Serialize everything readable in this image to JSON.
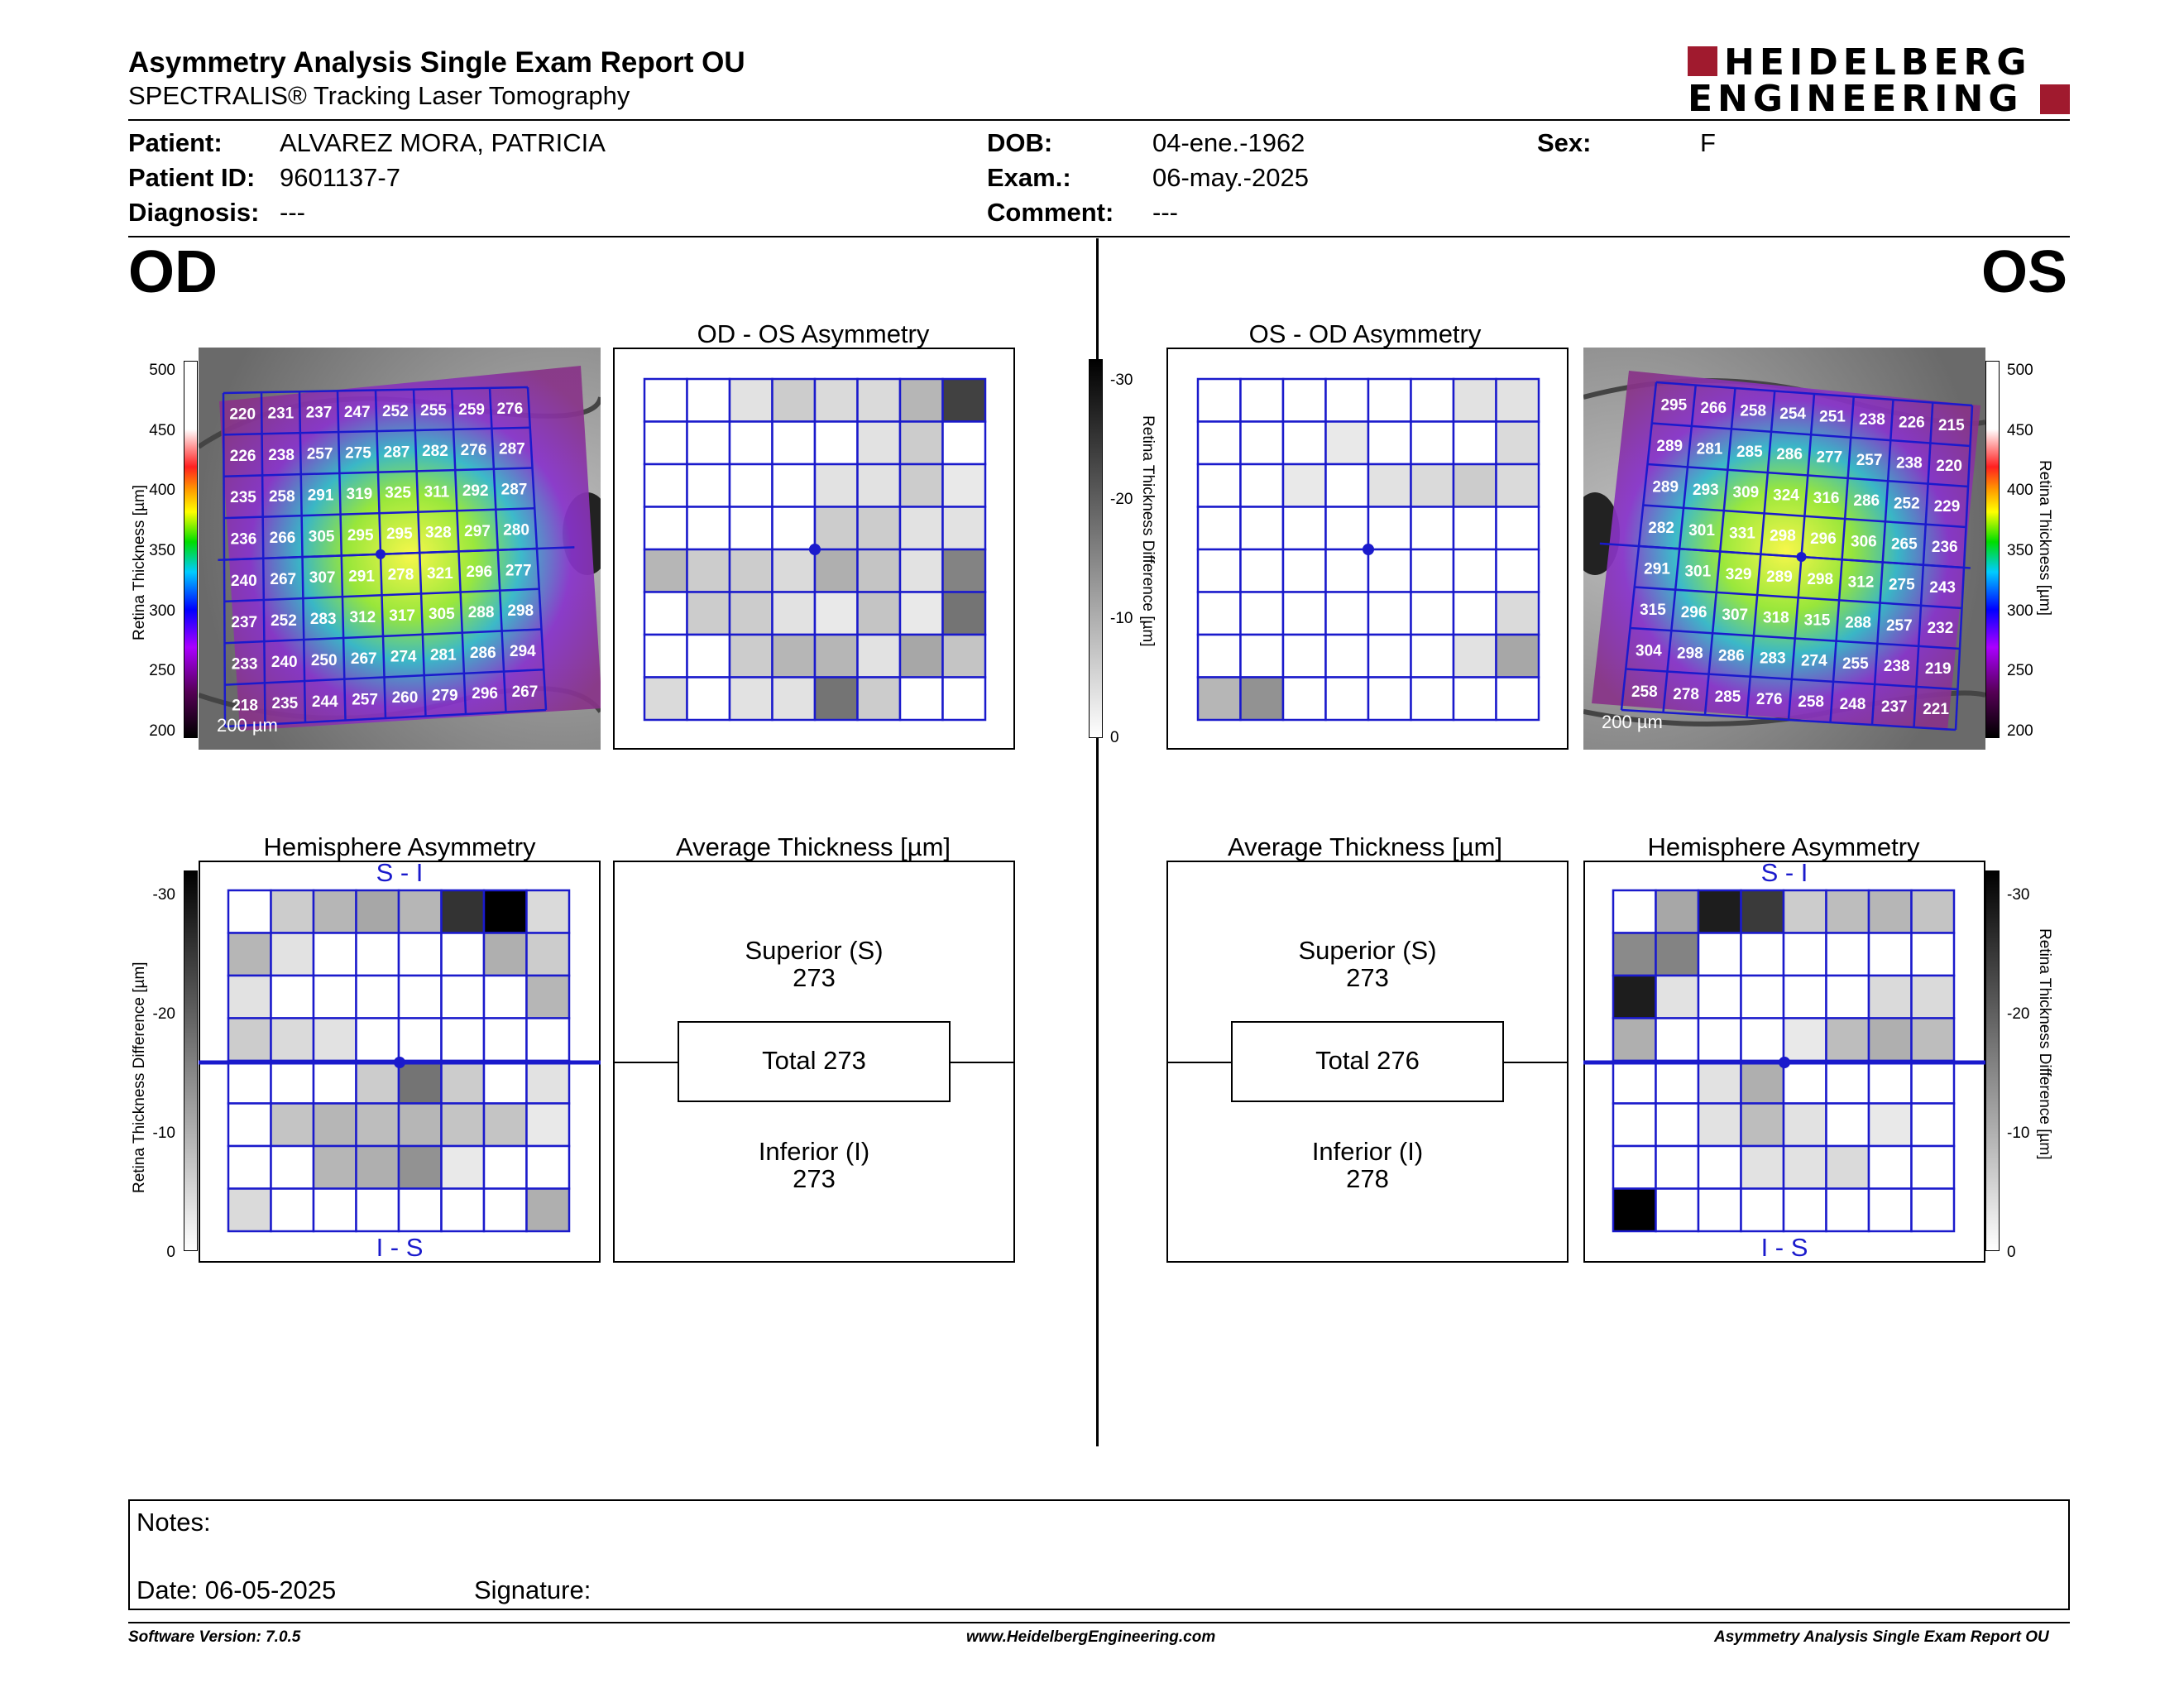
{
  "header": {
    "title": "Asymmetry Analysis Single Exam Report OU",
    "subtitle": "SPECTRALIS® Tracking Laser Tomography",
    "logo_line1": "HEIDELBERG",
    "logo_line2": "ENGINEERING",
    "logo_color": "#a01a2e"
  },
  "patient": {
    "patient_label": "Patient:",
    "patient_value": "ALVAREZ MORA, PATRICIA",
    "id_label": "Patient ID:",
    "id_value": "9601137-7",
    "diag_label": "Diagnosis:",
    "diag_value": "---",
    "dob_label": "DOB:",
    "dob_value": "04-ene.-1962",
    "exam_label": "Exam.:",
    "exam_value": "06-may.-2025",
    "comment_label": "Comment:",
    "comment_value": "---",
    "sex_label": "Sex:",
    "sex_value": "F"
  },
  "eyes": {
    "od": "OD",
    "os": "OS"
  },
  "thickness_scale": {
    "ticks": [
      "500",
      "450",
      "400",
      "350",
      "300",
      "250",
      "200"
    ],
    "label": "Retina Thickness [µm]"
  },
  "diff_scale": {
    "ticks": [
      "-30",
      "-20",
      "-10",
      "0"
    ],
    "label": "Retina Thickness Difference [µm]"
  },
  "od_fundus": {
    "scale_bar": "200 µm",
    "values": [
      [
        220,
        231,
        237,
        247,
        252,
        255,
        259,
        276
      ],
      [
        226,
        238,
        257,
        275,
        287,
        282,
        276,
        287
      ],
      [
        235,
        258,
        291,
        319,
        325,
        311,
        292,
        287
      ],
      [
        236,
        266,
        305,
        295,
        295,
        328,
        297,
        280
      ],
      [
        240,
        267,
        307,
        291,
        278,
        321,
        296,
        277
      ],
      [
        237,
        252,
        283,
        312,
        317,
        305,
        288,
        298
      ],
      [
        233,
        240,
        250,
        267,
        274,
        281,
        286,
        294
      ],
      [
        218,
        235,
        244,
        257,
        260,
        279,
        296,
        267
      ]
    ]
  },
  "os_fundus": {
    "scale_bar": "200 µm",
    "values": [
      [
        295,
        266,
        258,
        254,
        251,
        238,
        226,
        215
      ],
      [
        289,
        281,
        285,
        286,
        277,
        257,
        238,
        220
      ],
      [
        289,
        293,
        309,
        324,
        316,
        286,
        252,
        229
      ],
      [
        282,
        301,
        331,
        298,
        296,
        306,
        265,
        236
      ],
      [
        291,
        301,
        329,
        289,
        298,
        312,
        275,
        243
      ],
      [
        315,
        296,
        307,
        318,
        315,
        288,
        257,
        232
      ],
      [
        304,
        298,
        286,
        283,
        274,
        255,
        238,
        219
      ],
      [
        258,
        278,
        285,
        276,
        258,
        248,
        237,
        221
      ]
    ]
  },
  "od_os_asym": {
    "title": "OD - OS Asymmetry",
    "grid": [
      [
        0,
        0,
        3,
        6,
        4,
        4,
        9,
        25
      ],
      [
        0,
        0,
        0,
        0,
        0,
        3,
        6,
        0
      ],
      [
        0,
        0,
        0,
        0,
        3,
        3,
        6,
        2
      ],
      [
        0,
        0,
        0,
        0,
        6,
        6,
        3,
        3
      ],
      [
        9,
        6,
        6,
        4,
        10,
        7,
        3,
        16
      ],
      [
        0,
        6,
        6,
        3,
        2,
        7,
        2,
        18
      ],
      [
        0,
        0,
        6,
        9,
        9,
        3,
        11,
        7
      ],
      [
        4,
        0,
        3,
        3,
        18,
        6,
        0,
        0
      ]
    ]
  },
  "os_od_asym": {
    "title": "OS - OD Asymmetry",
    "grid": [
      [
        0,
        0,
        0,
        0,
        0,
        0,
        3,
        3
      ],
      [
        0,
        0,
        0,
        2,
        0,
        0,
        0,
        4
      ],
      [
        0,
        0,
        2,
        0,
        3,
        4,
        6,
        4
      ],
      [
        0,
        0,
        0,
        0,
        0,
        0,
        0,
        0
      ],
      [
        0,
        0,
        0,
        0,
        0,
        0,
        0,
        0
      ],
      [
        0,
        0,
        0,
        0,
        0,
        0,
        0,
        4
      ],
      [
        0,
        0,
        0,
        0,
        0,
        0,
        3,
        11
      ],
      [
        9,
        14,
        0,
        0,
        0,
        0,
        0,
        0
      ]
    ]
  },
  "od_hemi": {
    "title": "Hemisphere Asymmetry",
    "top_label": "S - I",
    "bottom_label": "I - S",
    "grid": [
      [
        0,
        6,
        9,
        11,
        9,
        27,
        34,
        4
      ],
      [
        9,
        3,
        0,
        0,
        0,
        0,
        10,
        6
      ],
      [
        3,
        0,
        0,
        0,
        0,
        0,
        0,
        9
      ],
      [
        6,
        4,
        3,
        0,
        0,
        0,
        0,
        0
      ],
      [
        0,
        0,
        0,
        6,
        18,
        6,
        0,
        3
      ],
      [
        0,
        7,
        9,
        8,
        9,
        7,
        7,
        2
      ],
      [
        0,
        0,
        9,
        10,
        14,
        2,
        0,
        0
      ],
      [
        4,
        0,
        0,
        0,
        0,
        0,
        0,
        10
      ]
    ]
  },
  "os_hemi": {
    "title": "Hemisphere Asymmetry",
    "top_label": "S - I",
    "bottom_label": "I - S",
    "grid": [
      [
        0,
        11,
        30,
        26,
        6,
        8,
        9,
        7
      ],
      [
        15,
        16,
        0,
        0,
        0,
        0,
        0,
        0
      ],
      [
        30,
        3,
        0,
        0,
        0,
        0,
        4,
        4
      ],
      [
        10,
        0,
        0,
        0,
        2,
        8,
        10,
        8
      ],
      [
        0,
        0,
        3,
        10,
        0,
        0,
        0,
        0
      ],
      [
        0,
        0,
        3,
        8,
        3,
        0,
        2,
        0
      ],
      [
        0,
        0,
        0,
        3,
        3,
        4,
        0,
        0
      ],
      [
        34,
        0,
        0,
        0,
        0,
        0,
        0,
        0
      ]
    ]
  },
  "od_avg": {
    "title": "Average Thickness [µm]",
    "superior_label": "Superior (S)",
    "superior_value": "273",
    "total": "Total 273",
    "inferior_label": "Inferior (I)",
    "inferior_value": "273"
  },
  "os_avg": {
    "title": "Average Thickness [µm]",
    "superior_label": "Superior (S)",
    "superior_value": "273",
    "total": "Total 276",
    "inferior_label": "Inferior (I)",
    "inferior_value": "278"
  },
  "notes": {
    "notes_label": "Notes:",
    "date_label": "Date: 06-05-2025",
    "signature_label": "Signature:"
  },
  "footer": {
    "version": "Software Version: 7.0.5",
    "url": "www.HeidelbergEngineering.com",
    "report": "Asymmetry Analysis Single Exam Report OU"
  }
}
